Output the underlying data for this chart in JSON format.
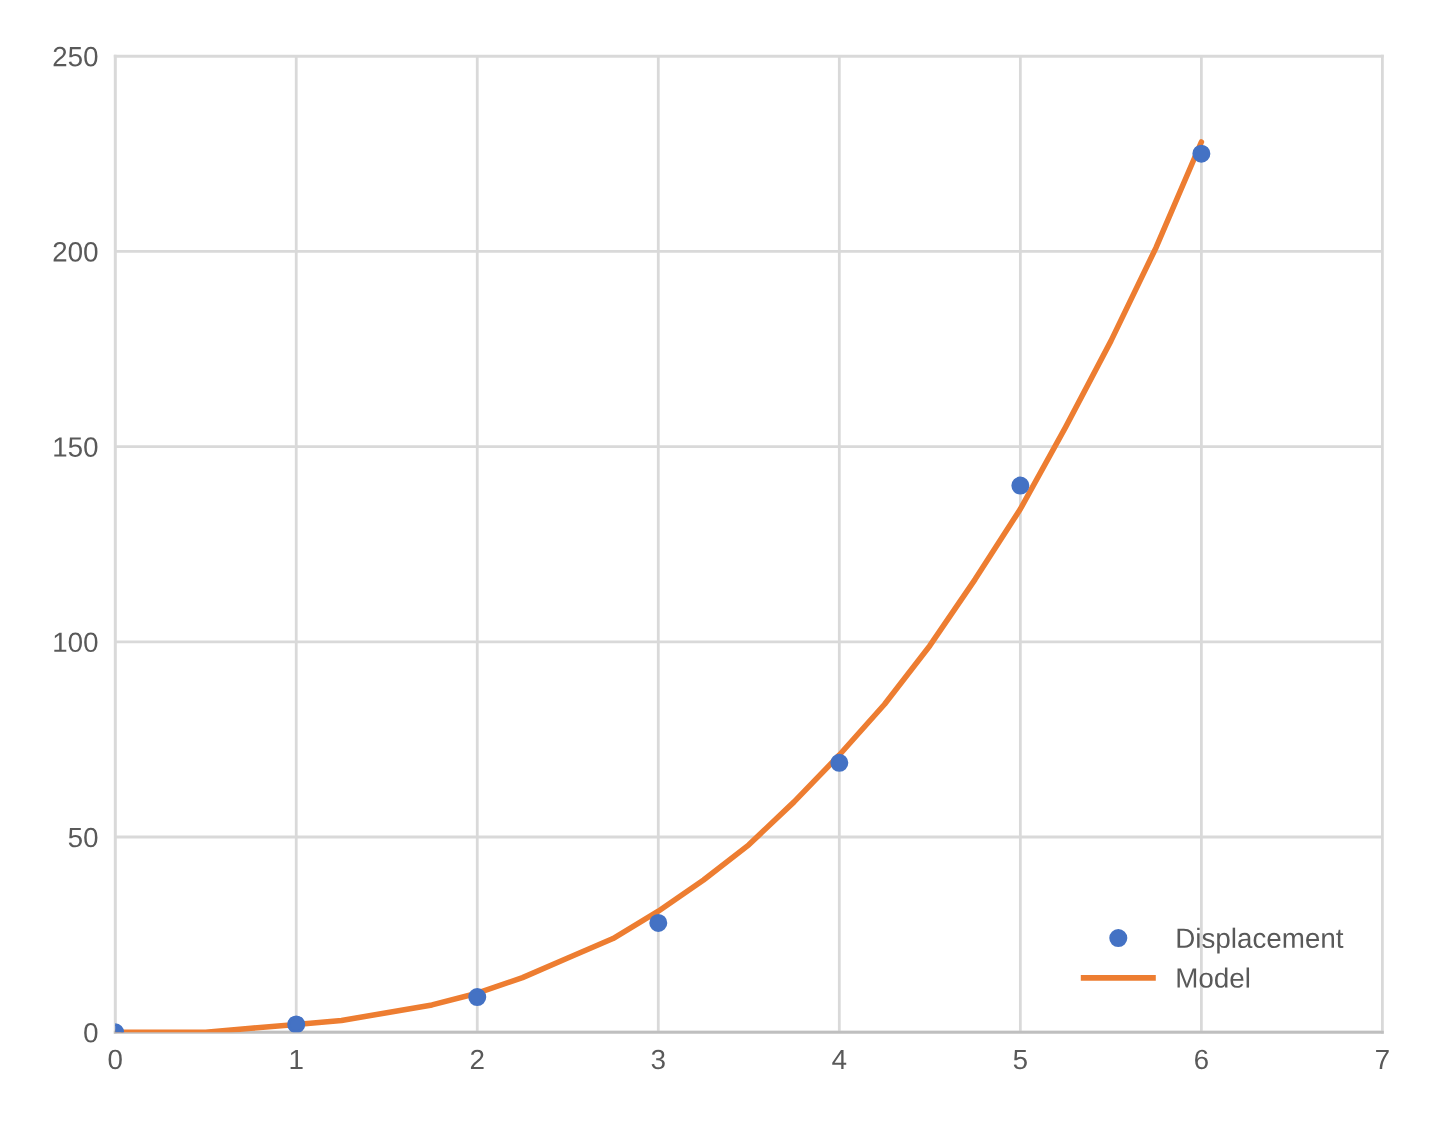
{
  "chart_data": {
    "type": "scatter",
    "x": [
      0,
      1,
      2,
      3,
      4,
      5,
      6
    ],
    "series": [
      {
        "name": "Displacement",
        "color": "#4472c4",
        "marker": "circle",
        "values": [
          0,
          2,
          9,
          28,
          69,
          140,
          225
        ]
      },
      {
        "name": "Model",
        "type": "line",
        "color": "#ed7d31",
        "marker": "none",
        "x": [
          0,
          0.25,
          0.5,
          0.75,
          1,
          1.25,
          1.5,
          1.75,
          2,
          2.25,
          2.5,
          2.75,
          3,
          3.25,
          3.5,
          3.75,
          4,
          4.25,
          4.5,
          4.75,
          5,
          5.25,
          5.5,
          5.75,
          6
        ],
        "values": [
          0,
          0,
          0,
          1,
          2,
          3,
          5,
          7,
          10,
          14,
          19,
          24,
          31,
          39,
          48,
          59,
          71,
          84,
          99,
          116,
          134,
          155,
          177,
          201,
          228
        ]
      }
    ],
    "xlim": [
      0,
      7
    ],
    "xticks": [
      0,
      1,
      2,
      3,
      4,
      5,
      6,
      7
    ],
    "ylim": [
      0,
      250
    ],
    "yticks": [
      0,
      50,
      100,
      150,
      200,
      250
    ],
    "grid": true,
    "legend": "bottom right"
  }
}
